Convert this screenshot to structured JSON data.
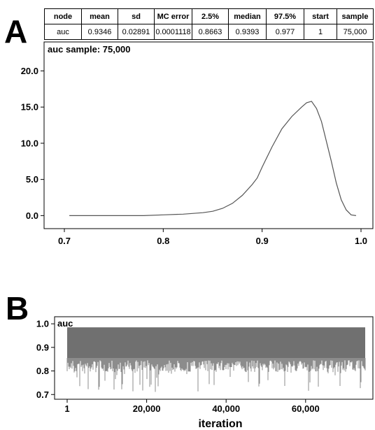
{
  "panels": {
    "a": "A",
    "b": "B"
  },
  "stats": {
    "headers": [
      "node",
      "mean",
      "sd",
      "MC error",
      "2.5%",
      "median",
      "97.5%",
      "start",
      "sample"
    ],
    "values": [
      "auc",
      "0.9346",
      "0.02891",
      "0.0001118",
      "0.8663",
      "0.9393",
      "0.977",
      "1",
      "75,000"
    ]
  },
  "chart_data": [
    {
      "type": "line",
      "title": "auc sample: 75,000",
      "xlabel": "",
      "ylabel": "",
      "xlim": [
        0.7,
        1.0
      ],
      "ylim": [
        -1.8,
        24.0
      ],
      "xticks": [
        "0.7",
        "0.8",
        "0.9",
        "1.0"
      ],
      "yticks": [
        "0.0",
        "5.0",
        "10.0",
        "15.0",
        "20.0"
      ],
      "color": "#555555",
      "series": [
        {
          "x": [
            0.705,
            0.75,
            0.78,
            0.8,
            0.82,
            0.84,
            0.85,
            0.86,
            0.87,
            0.88,
            0.89,
            0.895,
            0.9,
            0.91,
            0.92,
            0.93,
            0.94,
            0.945,
            0.95,
            0.955,
            0.96,
            0.97,
            0.975,
            0.98,
            0.985,
            0.99,
            0.995
          ],
          "y": [
            0.0,
            0.0,
            0.0,
            0.1,
            0.2,
            0.4,
            0.6,
            1.0,
            1.7,
            2.8,
            4.3,
            5.2,
            6.7,
            9.5,
            12.0,
            13.7,
            15.0,
            15.6,
            15.8,
            14.8,
            13.0,
            7.5,
            4.5,
            2.2,
            0.8,
            0.1,
            0.0
          ]
        }
      ],
      "grid": false
    },
    {
      "type": "line",
      "title": "auc",
      "xlabel": "iteration",
      "ylabel": "",
      "xlim": [
        1,
        75000
      ],
      "ylim": [
        0.68,
        1.03
      ],
      "xticks": [
        "1",
        "20,000",
        "40,000",
        "60,000"
      ],
      "yticks": [
        "0.7",
        "0.8",
        "0.9",
        "1.0"
      ],
      "color": "#707070",
      "band": {
        "upper": 0.985,
        "lower": 0.855,
        "min_dip": 0.71
      },
      "grid": false
    }
  ]
}
